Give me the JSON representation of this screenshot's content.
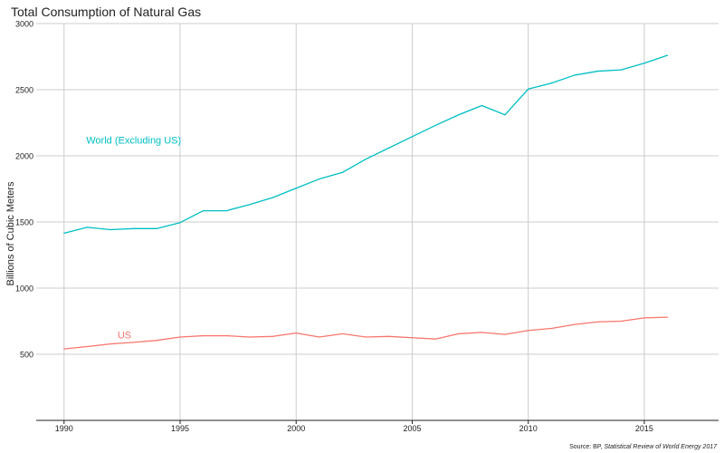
{
  "chart_data": {
    "type": "line",
    "title": "Total Consumption of Natural Gas",
    "xlabel": "",
    "ylabel": "Billions of Cubic Meters",
    "x": [
      1990,
      1991,
      1992,
      1993,
      1994,
      1995,
      1996,
      1997,
      1998,
      1999,
      2000,
      2001,
      2002,
      2003,
      2004,
      2005,
      2006,
      2007,
      2008,
      2009,
      2010,
      2011,
      2012,
      2013,
      2014,
      2015,
      2016
    ],
    "xlim": [
      1988.8,
      2018.2
    ],
    "ylim": [
      0,
      3000
    ],
    "x_ticks": [
      1990,
      1995,
      2000,
      2005,
      2010,
      2015
    ],
    "y_ticks": [
      500,
      1000,
      1500,
      2000,
      2500,
      3000
    ],
    "grid": true,
    "series": [
      {
        "name": "World (Excluding US)",
        "color": "#00BFC4",
        "label_at": [
          1993,
          2120
        ],
        "values": [
          1415,
          1460,
          1442,
          1450,
          1450,
          1495,
          1585,
          1585,
          1632,
          1685,
          1755,
          1825,
          1875,
          1975,
          2060,
          2145,
          2230,
          2310,
          2380,
          2310,
          2505,
          2550,
          2610,
          2640,
          2650,
          2700,
          2760
        ]
      },
      {
        "name": "US",
        "color": "#F8766D",
        "label_at": [
          1992.6,
          648
        ],
        "values": [
          540,
          558,
          578,
          590,
          605,
          630,
          640,
          640,
          630,
          635,
          660,
          630,
          655,
          630,
          635,
          625,
          615,
          655,
          665,
          650,
          680,
          695,
          725,
          745,
          750,
          775,
          780
        ]
      }
    ],
    "source_prefix": "Source: BP, ",
    "source_title": "Statistical Review of World Energy 2017"
  }
}
